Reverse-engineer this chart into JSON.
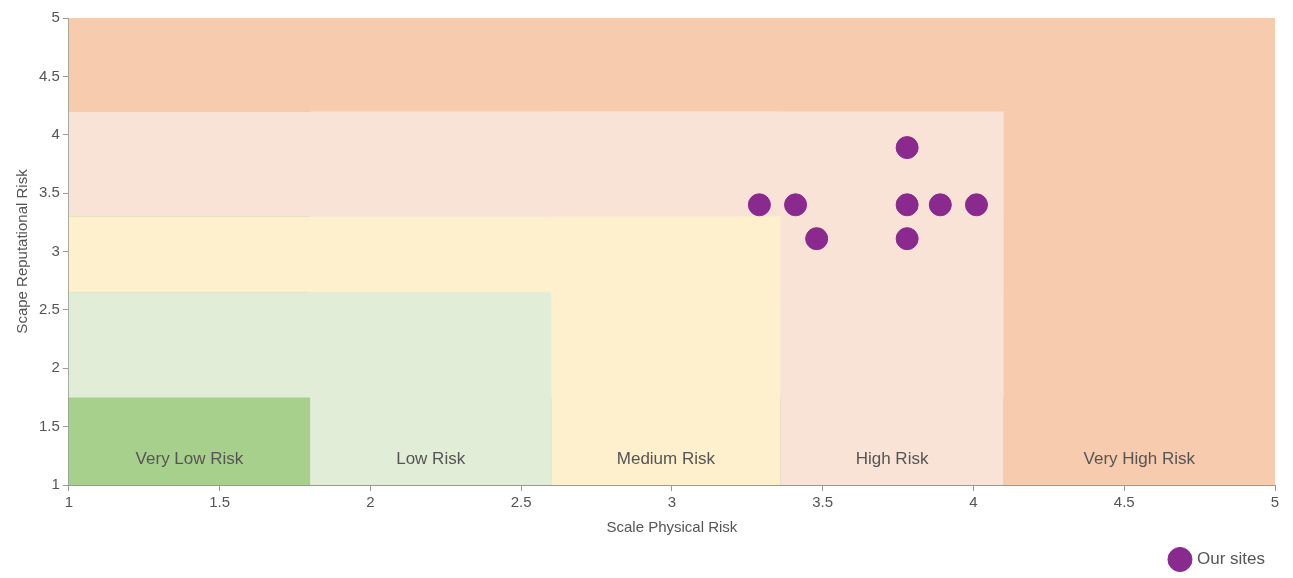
{
  "chart_data": {
    "type": "scatter",
    "xlabel": "Scale Physical Risk",
    "ylabel": "Scape Reputational Risk",
    "xlim": [
      1,
      5
    ],
    "ylim": [
      1,
      5
    ],
    "xticks": [
      1,
      1.5,
      2,
      2.5,
      3,
      3.5,
      4,
      4.5,
      5
    ],
    "yticks": [
      1,
      1.5,
      2,
      2.5,
      3,
      3.5,
      4,
      4.5,
      5
    ],
    "grid": false,
    "legend": "bottom right",
    "marker": "circle",
    "bands": [
      {
        "axis": "x",
        "from": 1,
        "to": 1.8,
        "label": "Very Low Risk",
        "color": "#a8d08d"
      },
      {
        "axis": "y",
        "from": 1,
        "to": 1.75,
        "color": "#a8d08d"
      },
      {
        "axis": "x",
        "from": 1.8,
        "to": 2.6,
        "label": "Low Risk",
        "color": "#e2edd8"
      },
      {
        "axis": "y",
        "from": 1.75,
        "to": 2.65,
        "color": "#e2edd8"
      },
      {
        "axis": "x",
        "from": 2.6,
        "to": 3.36,
        "label": "Medium Risk",
        "color": "#fef0cd"
      },
      {
        "axis": "y",
        "from": 2.65,
        "to": 3.3,
        "color": "#fef0cd"
      },
      {
        "axis": "x",
        "from": 3.36,
        "to": 4.1,
        "label": "High Risk",
        "color": "#f9e3d6"
      },
      {
        "axis": "y",
        "from": 3.3,
        "to": 4.2,
        "color": "#f9e3d6"
      },
      {
        "axis": "x",
        "from": 4.1,
        "to": 5,
        "label": "Very High Risk",
        "color": "#f7cbad"
      },
      {
        "axis": "y",
        "from": 4.2,
        "to": 5,
        "color": "#f7cbad"
      }
    ],
    "series": [
      {
        "name": "Our sites",
        "type": "scatter",
        "color": "#8b2a8e",
        "x": [
          3.29,
          3.41,
          3.48,
          3.78,
          3.78,
          3.89,
          4.01,
          3.78
        ],
        "values": [
          3.4,
          3.4,
          3.11,
          3.89,
          3.4,
          3.4,
          3.4,
          3.11
        ]
      }
    ]
  }
}
